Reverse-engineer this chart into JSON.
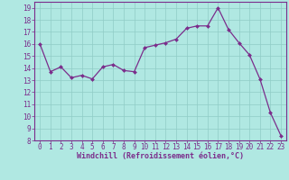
{
  "x": [
    0,
    1,
    2,
    3,
    4,
    5,
    6,
    7,
    8,
    9,
    10,
    11,
    12,
    13,
    14,
    15,
    16,
    17,
    18,
    19,
    20,
    21,
    22,
    23
  ],
  "y": [
    16.0,
    13.7,
    14.1,
    13.2,
    13.4,
    13.1,
    14.1,
    14.3,
    13.8,
    13.7,
    15.7,
    15.9,
    16.1,
    16.4,
    17.3,
    17.5,
    17.5,
    19.0,
    17.2,
    16.1,
    15.1,
    13.1,
    10.3,
    8.4
  ],
  "line_color": "#7b2d8b",
  "marker_color": "#7b2d8b",
  "bg_color": "#b0e8e2",
  "grid_color": "#90ccc6",
  "xlabel": "Windchill (Refroidissement éolien,°C)",
  "ylabel": "",
  "ylim": [
    8,
    19.5
  ],
  "xlim": [
    -0.5,
    23.5
  ],
  "yticks": [
    8,
    9,
    10,
    11,
    12,
    13,
    14,
    15,
    16,
    17,
    18,
    19
  ],
  "xticks": [
    0,
    1,
    2,
    3,
    4,
    5,
    6,
    7,
    8,
    9,
    10,
    11,
    12,
    13,
    14,
    15,
    16,
    17,
    18,
    19,
    20,
    21,
    22,
    23
  ],
  "label_fontsize": 6.0,
  "tick_fontsize": 5.5
}
